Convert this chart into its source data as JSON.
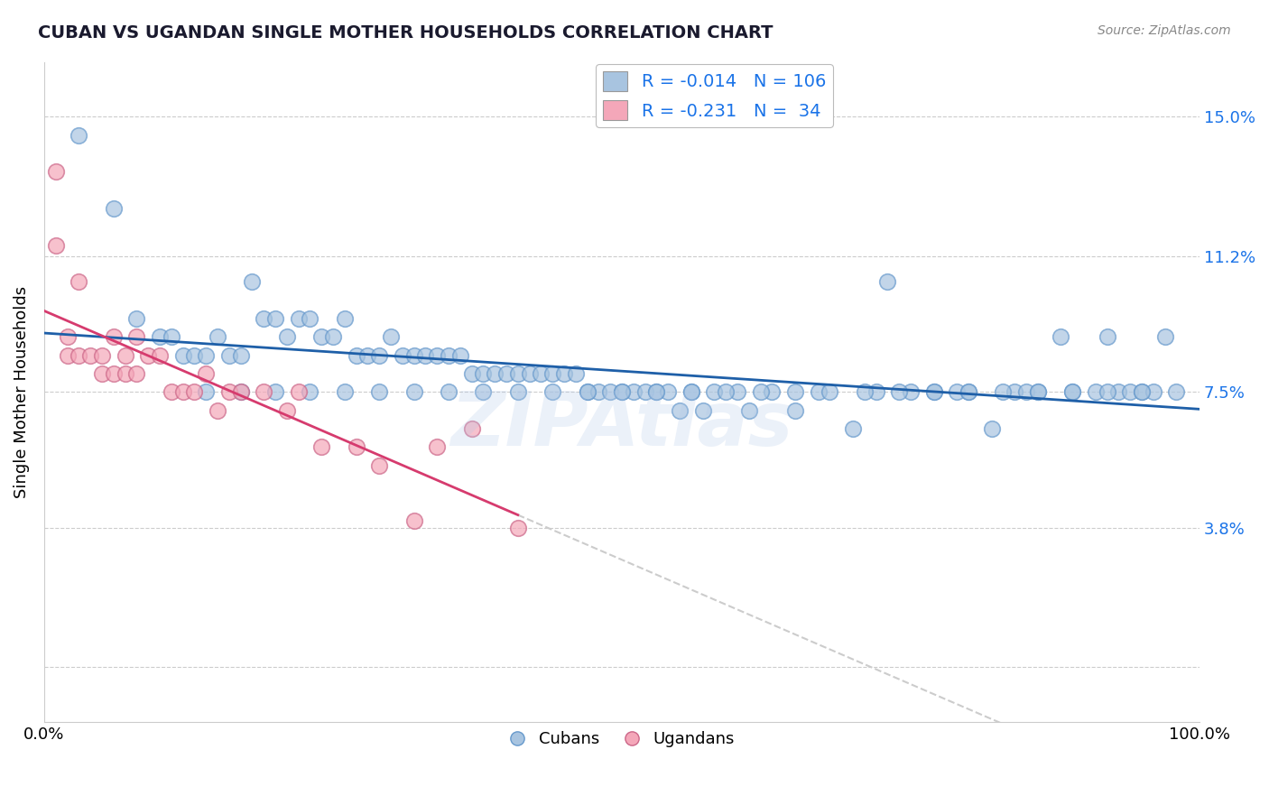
{
  "title": "CUBAN VS UGANDAN SINGLE MOTHER HOUSEHOLDS CORRELATION CHART",
  "source": "Source: ZipAtlas.com",
  "ylabel": "Single Mother Households",
  "xlim": [
    0,
    100
  ],
  "ylim": [
    -1.5,
    16.5
  ],
  "ytick_vals": [
    0,
    3.8,
    7.5,
    11.2,
    15.0
  ],
  "ytick_labels": [
    "",
    "3.8%",
    "7.5%",
    "11.2%",
    "15.0%"
  ],
  "xtick_vals": [
    0,
    100
  ],
  "xtick_labels": [
    "0.0%",
    "100.0%"
  ],
  "blue_R": -0.014,
  "blue_N": 106,
  "pink_R": -0.231,
  "pink_N": 34,
  "blue_color": "#a8c4e0",
  "pink_color": "#f4a7b9",
  "blue_line_color": "#1e5fa8",
  "pink_line_color": "#d63b6e",
  "legend_blue_label": "Cubans",
  "legend_pink_label": "Ugandans",
  "watermark": "ZIPAtlas",
  "blue_x": [
    3,
    6,
    8,
    10,
    11,
    12,
    13,
    14,
    15,
    16,
    17,
    18,
    19,
    20,
    21,
    22,
    23,
    24,
    25,
    26,
    27,
    28,
    29,
    30,
    31,
    32,
    33,
    34,
    35,
    36,
    37,
    38,
    39,
    40,
    41,
    42,
    43,
    44,
    45,
    46,
    47,
    48,
    49,
    50,
    51,
    52,
    53,
    54,
    55,
    56,
    57,
    58,
    60,
    61,
    63,
    65,
    67,
    70,
    72,
    73,
    75,
    77,
    79,
    80,
    82,
    84,
    85,
    86,
    88,
    89,
    91,
    92,
    93,
    94,
    95,
    96,
    97,
    98,
    14,
    17,
    20,
    23,
    26,
    29,
    32,
    35,
    38,
    41,
    44,
    47,
    50,
    53,
    56,
    59,
    62,
    65,
    68,
    71,
    74,
    77,
    80,
    83,
    86,
    89,
    92,
    95
  ],
  "blue_y": [
    14.5,
    12.5,
    9.5,
    9.0,
    9.0,
    8.5,
    8.5,
    8.5,
    9.0,
    8.5,
    8.5,
    10.5,
    9.5,
    9.5,
    9.0,
    9.5,
    9.5,
    9.0,
    9.0,
    9.5,
    8.5,
    8.5,
    8.5,
    9.0,
    8.5,
    8.5,
    8.5,
    8.5,
    8.5,
    8.5,
    8.0,
    8.0,
    8.0,
    8.0,
    8.0,
    8.0,
    8.0,
    8.0,
    8.0,
    8.0,
    7.5,
    7.5,
    7.5,
    7.5,
    7.5,
    7.5,
    7.5,
    7.5,
    7.0,
    7.5,
    7.0,
    7.5,
    7.5,
    7.0,
    7.5,
    7.0,
    7.5,
    6.5,
    7.5,
    10.5,
    7.5,
    7.5,
    7.5,
    7.5,
    6.5,
    7.5,
    7.5,
    7.5,
    9.0,
    7.5,
    7.5,
    9.0,
    7.5,
    7.5,
    7.5,
    7.5,
    9.0,
    7.5,
    7.5,
    7.5,
    7.5,
    7.5,
    7.5,
    7.5,
    7.5,
    7.5,
    7.5,
    7.5,
    7.5,
    7.5,
    7.5,
    7.5,
    7.5,
    7.5,
    7.5,
    7.5,
    7.5,
    7.5,
    7.5,
    7.5,
    7.5,
    7.5,
    7.5,
    7.5,
    7.5,
    7.5
  ],
  "pink_x": [
    1,
    1,
    2,
    2,
    3,
    3,
    4,
    5,
    5,
    6,
    6,
    7,
    7,
    8,
    8,
    9,
    10,
    11,
    12,
    13,
    14,
    15,
    16,
    17,
    19,
    21,
    22,
    24,
    27,
    29,
    32,
    34,
    37,
    41
  ],
  "pink_y": [
    13.5,
    11.5,
    9.0,
    8.5,
    8.5,
    10.5,
    8.5,
    8.0,
    8.5,
    8.0,
    9.0,
    8.0,
    8.5,
    8.0,
    9.0,
    8.5,
    8.5,
    7.5,
    7.5,
    7.5,
    8.0,
    7.0,
    7.5,
    7.5,
    7.5,
    7.0,
    7.5,
    6.0,
    6.0,
    5.5,
    4.0,
    6.0,
    6.5,
    3.8
  ]
}
